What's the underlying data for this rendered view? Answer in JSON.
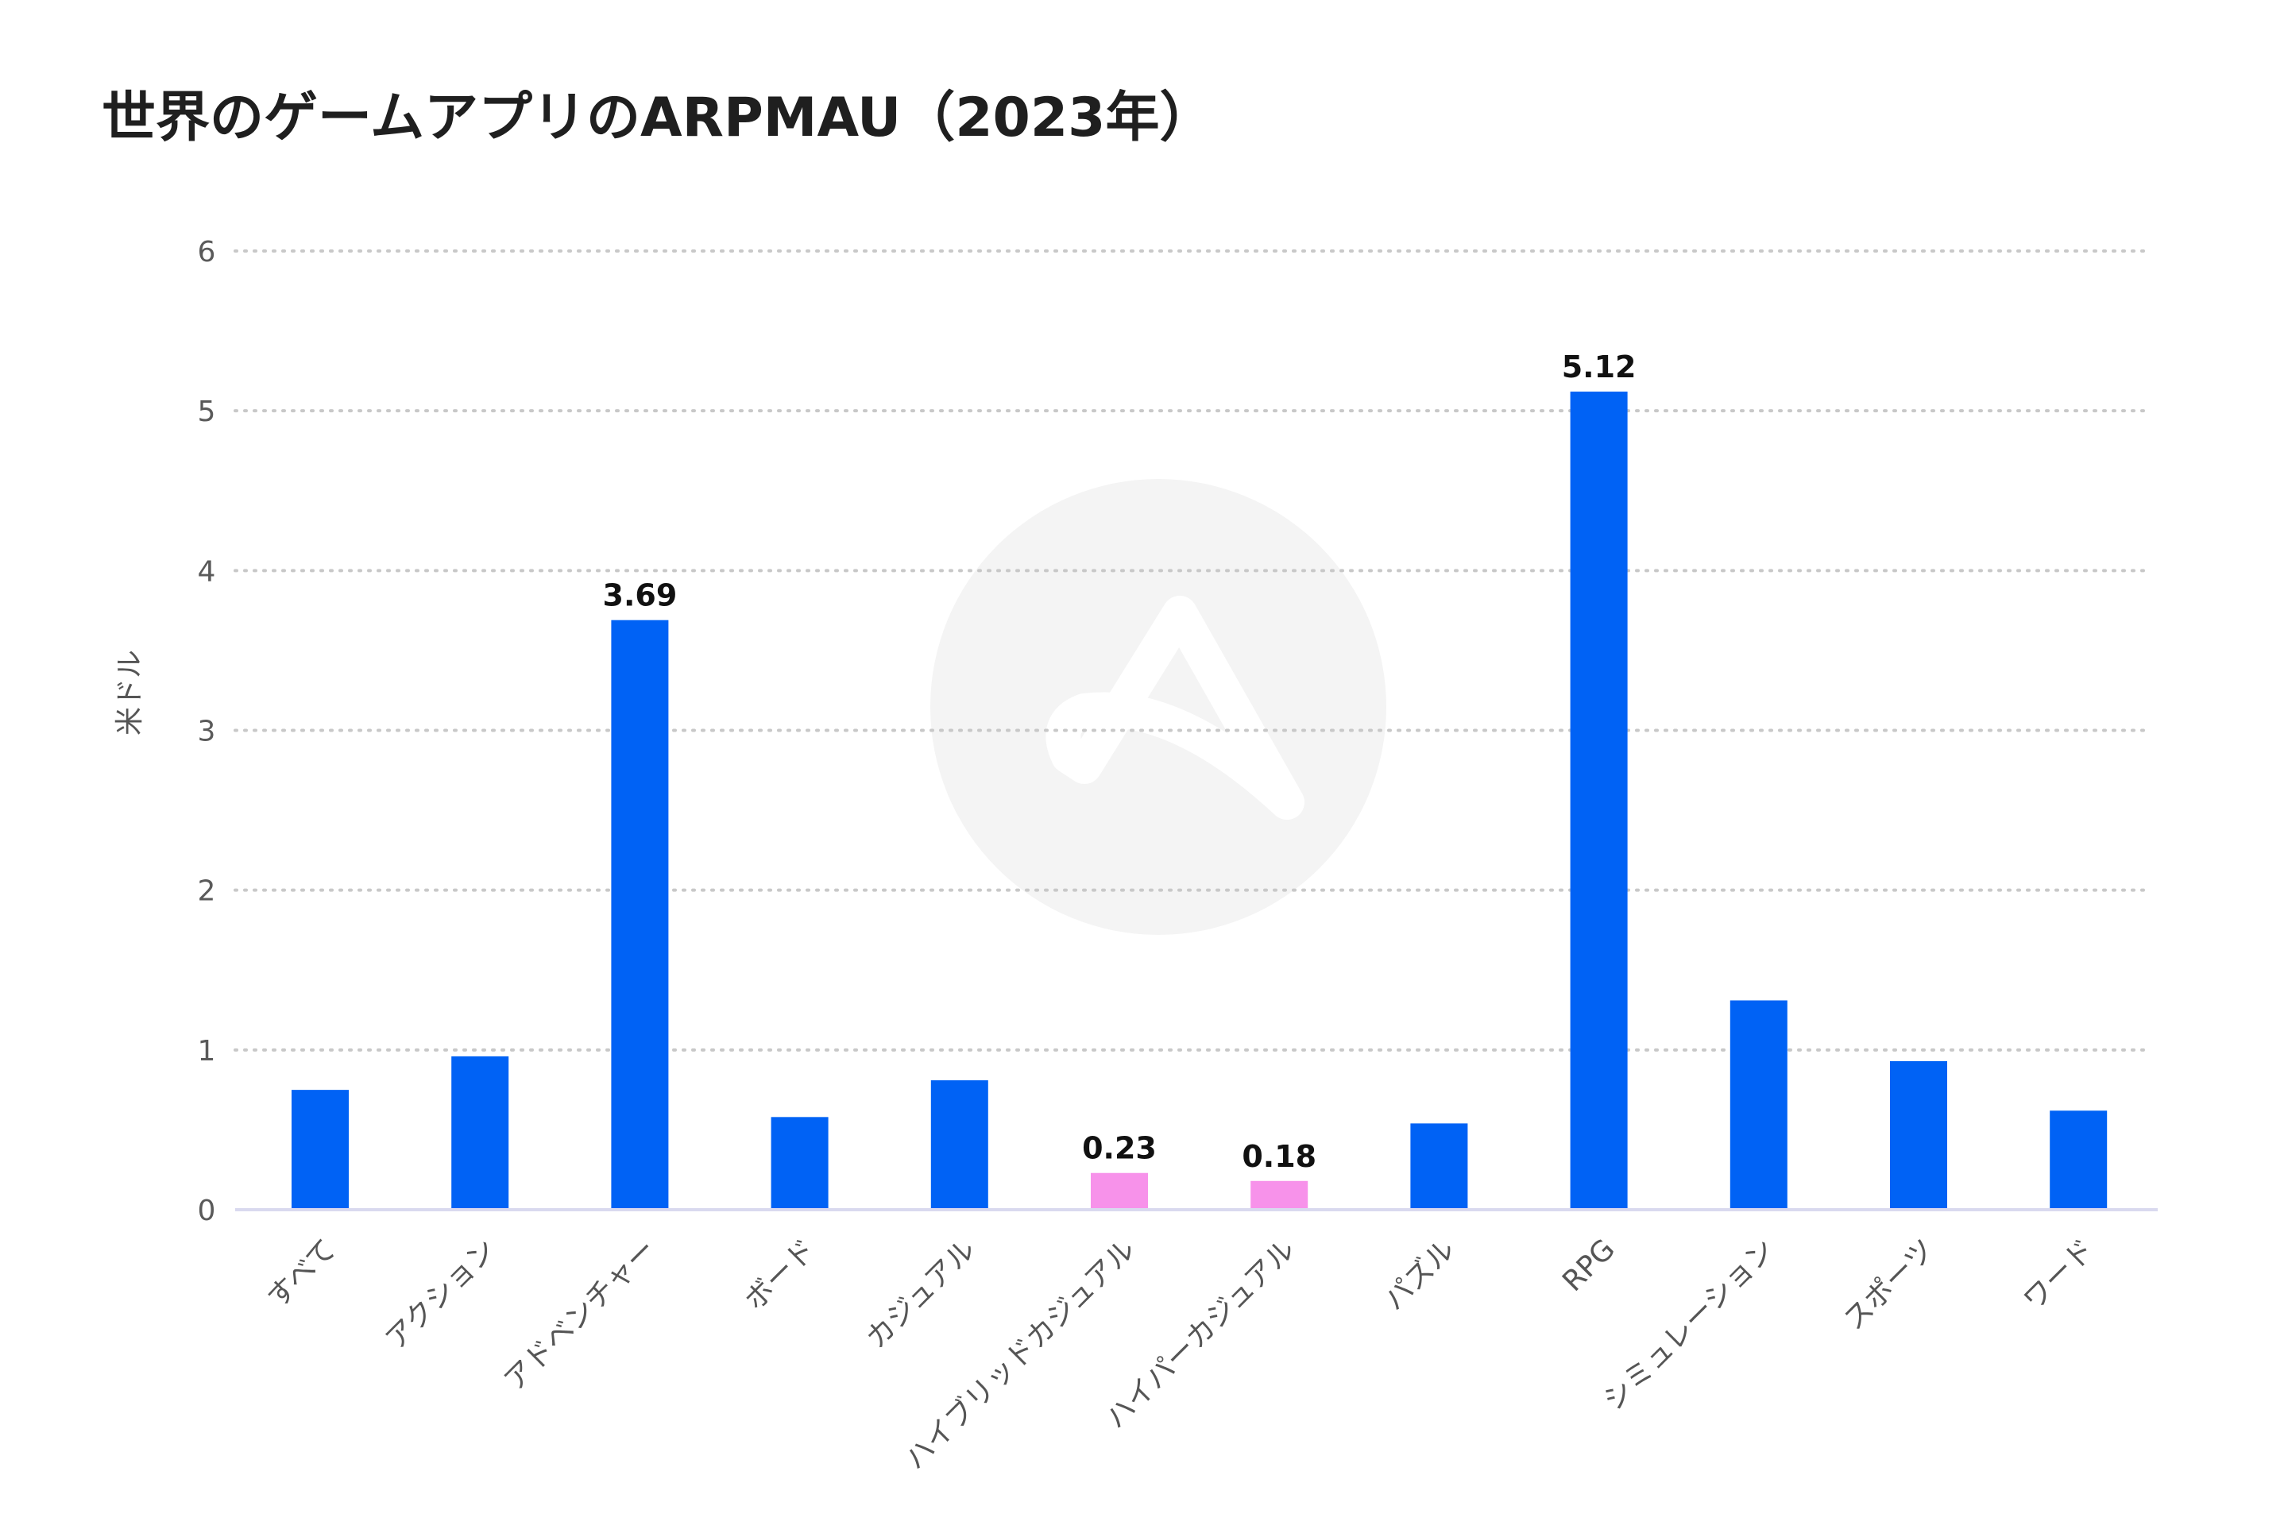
{
  "title": "世界のゲームアプリのARPMAU（2023年）",
  "colors": {
    "bar_default": "#0062f5",
    "bar_highlight": "#f792ea",
    "grid": "#c8c8c8",
    "axis": "#d9d9ef",
    "watermark": "#f4f4f4"
  },
  "icons": {
    "watermark": "brand-logo-watermark-icon"
  },
  "chart_data": {
    "type": "bar",
    "ylabel": "米ドル",
    "xlabel": "",
    "ylim": [
      0,
      6
    ],
    "yticks": [
      0,
      1,
      2,
      3,
      4,
      5,
      6
    ],
    "grid": true,
    "categories": [
      "すべて",
      "アクション",
      "アドベンチャー",
      "ボード",
      "カジュアル",
      "ハイブリッドカジュアル",
      "ハイパーカジュアル",
      "パズル",
      "RPG",
      "シミュレーション",
      "スポーツ",
      "ワード"
    ],
    "values": [
      0.75,
      0.96,
      3.69,
      0.58,
      0.81,
      0.23,
      0.18,
      0.54,
      5.12,
      1.31,
      0.93,
      0.62
    ],
    "highlighted": [
      false,
      false,
      false,
      false,
      false,
      true,
      true,
      false,
      false,
      false,
      false,
      false
    ],
    "data_labels": [
      "",
      "",
      "3.69",
      "",
      "",
      "0.23",
      "0.18",
      "",
      "5.12",
      "",
      "",
      ""
    ]
  }
}
